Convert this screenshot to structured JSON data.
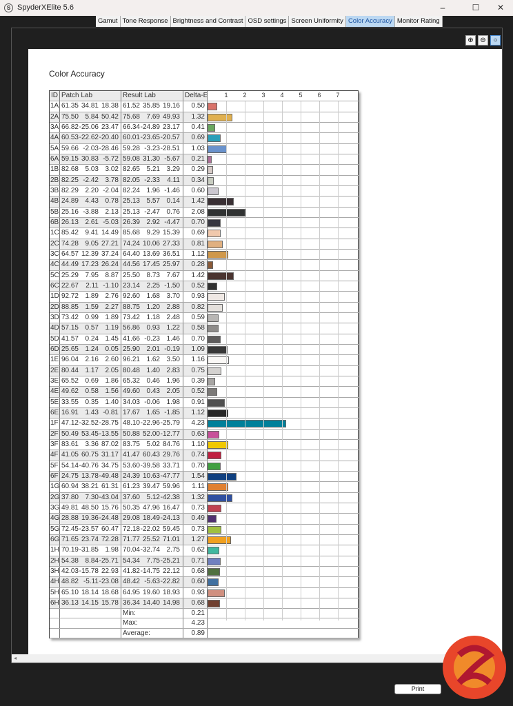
{
  "window": {
    "title": "SpyderXElite 5.6",
    "minimize": "–",
    "maximize": "☐",
    "close": "✕"
  },
  "tabs": [
    {
      "label": "Gamut"
    },
    {
      "label": "Tone Response"
    },
    {
      "label": "Brightness and Contrast"
    },
    {
      "label": "OSD settings"
    },
    {
      "label": "Screen Uniformity"
    },
    {
      "label": "Color Accuracy",
      "active": true
    },
    {
      "label": "Monitor Rating"
    }
  ],
  "zoom_tools": [
    {
      "icon": "zoom-in-icon",
      "glyph": "⊕"
    },
    {
      "icon": "zoom-out-icon",
      "glyph": "⊖"
    },
    {
      "icon": "zoom-fit-icon",
      "glyph": "○",
      "active": true
    }
  ],
  "report": {
    "title": "Color Accuracy",
    "headers": {
      "id": "ID",
      "patch": "Patch Lab",
      "result": "Result Lab",
      "delta": "Delta-E"
    },
    "axis_ticks": [
      "1",
      "2",
      "3",
      "4",
      "5",
      "6",
      "7"
    ],
    "rows": [
      [
        "1A",
        [
          "61.35",
          "34.81",
          "18.38"
        ],
        [
          "61.52",
          "35.85",
          "19.16"
        ],
        "0.50",
        "#d9736a"
      ],
      [
        "2A",
        [
          "75.50",
          "5.84",
          "50.42"
        ],
        [
          "75.68",
          "7.69",
          "49.93"
        ],
        "1.32",
        "#e0b050"
      ],
      [
        "3A",
        [
          "66.82",
          "-25.06",
          "23.47"
        ],
        [
          "66.34",
          "-24.89",
          "23.17"
        ],
        "0.41",
        "#6aa860"
      ],
      [
        "4A",
        [
          "60.53",
          "-22.62",
          "-20.40"
        ],
        [
          "60.01",
          "-23.65",
          "-20.57"
        ],
        "0.69",
        "#2a9fb8"
      ],
      [
        "5A",
        [
          "59.66",
          "-2.03",
          "-28.46"
        ],
        [
          "59.28",
          "-3.23",
          "-28.51"
        ],
        "1.03",
        "#6a92cc"
      ],
      [
        "6A",
        [
          "59.15",
          "30.83",
          "-5.72"
        ],
        [
          "59.08",
          "31.30",
          "-5.67"
        ],
        "0.21",
        "#b0709a"
      ],
      [
        "1B",
        [
          "82.68",
          "5.03",
          "3.02"
        ],
        [
          "82.65",
          "5.21",
          "3.29"
        ],
        "0.29",
        "#d8ccc8"
      ],
      [
        "2B",
        [
          "82.25",
          "-2.42",
          "3.78"
        ],
        [
          "82.05",
          "-2.33",
          "4.11"
        ],
        "0.34",
        "#c8ccc0"
      ],
      [
        "3B",
        [
          "82.29",
          "2.20",
          "-2.04"
        ],
        [
          "82.24",
          "1.96",
          "-1.46"
        ],
        "0.60",
        "#ccc8d0"
      ],
      [
        "4B",
        [
          "24.89",
          "4.43",
          "0.78"
        ],
        [
          "25.13",
          "5.57",
          "0.14"
        ],
        "1.42",
        "#3a3034"
      ],
      [
        "5B",
        [
          "25.16",
          "-3.88",
          "2.13"
        ],
        [
          "25.13",
          "-2.47",
          "0.76"
        ],
        "2.08",
        "#303232"
      ],
      [
        "6B",
        [
          "26.13",
          "2.61",
          "-5.03"
        ],
        [
          "26.39",
          "2.92",
          "-4.47"
        ],
        "0.70",
        "#363640"
      ],
      [
        "1C",
        [
          "85.42",
          "9.41",
          "14.49"
        ],
        [
          "85.68",
          "9.29",
          "15.39"
        ],
        "0.69",
        "#f0c8ac"
      ],
      [
        "2C",
        [
          "74.28",
          "9.05",
          "27.21"
        ],
        [
          "74.24",
          "10.06",
          "27.33"
        ],
        "0.81",
        "#e0b080"
      ],
      [
        "3C",
        [
          "64.57",
          "12.39",
          "37.24"
        ],
        [
          "64.40",
          "13.69",
          "36.51"
        ],
        "1.12",
        "#d0984a"
      ],
      [
        "4C",
        [
          "44.49",
          "17.23",
          "26.24"
        ],
        [
          "44.56",
          "17.45",
          "25.97"
        ],
        "0.28",
        "#8a5a38"
      ],
      [
        "5C",
        [
          "25.29",
          "7.95",
          "8.87"
        ],
        [
          "25.50",
          "8.73",
          "7.67"
        ],
        "1.42",
        "#4a3430"
      ],
      [
        "6C",
        [
          "22.67",
          "2.11",
          "-1.10"
        ],
        [
          "23.14",
          "2.25",
          "-1.50"
        ],
        "0.52",
        "#303030"
      ],
      [
        "1D",
        [
          "92.72",
          "1.89",
          "2.76"
        ],
        [
          "92.60",
          "1.68",
          "3.70"
        ],
        "0.93",
        "#efe8e4"
      ],
      [
        "2D",
        [
          "88.85",
          "1.59",
          "2.27"
        ],
        [
          "88.75",
          "1.20",
          "2.88"
        ],
        "0.82",
        "#e4e0dc"
      ],
      [
        "3D",
        [
          "73.42",
          "0.99",
          "1.89"
        ],
        [
          "73.42",
          "1.18",
          "2.48"
        ],
        "0.59",
        "#b8b6b4"
      ],
      [
        "4D",
        [
          "57.15",
          "0.57",
          "1.19"
        ],
        [
          "56.86",
          "0.93",
          "1.22"
        ],
        "0.58",
        "#8e8c8a"
      ],
      [
        "5D",
        [
          "41.57",
          "0.24",
          "1.45"
        ],
        [
          "41.66",
          "-0.23",
          "1.46"
        ],
        "0.70",
        "#5e5c5c"
      ],
      [
        "6D",
        [
          "25.65",
          "1.24",
          "0.05"
        ],
        [
          "25.90",
          "2.01",
          "-0.19"
        ],
        "1.09",
        "#383838"
      ],
      [
        "1E",
        [
          "96.04",
          "2.16",
          "2.60"
        ],
        [
          "96.21",
          "1.62",
          "3.50"
        ],
        "1.16",
        "#faf8f6"
      ],
      [
        "2E",
        [
          "80.44",
          "1.17",
          "2.05"
        ],
        [
          "80.48",
          "1.40",
          "2.83"
        ],
        "0.75",
        "#d4d2d0"
      ],
      [
        "3E",
        [
          "65.52",
          "0.69",
          "1.86"
        ],
        [
          "65.32",
          "0.46",
          "1.96"
        ],
        "0.39",
        "#a8a6a4"
      ],
      [
        "4E",
        [
          "49.62",
          "0.58",
          "1.56"
        ],
        [
          "49.60",
          "0.43",
          "2.05"
        ],
        "0.52",
        "#7c7a78"
      ],
      [
        "5E",
        [
          "33.55",
          "0.35",
          "1.40"
        ],
        [
          "34.03",
          "-0.06",
          "1.98"
        ],
        "0.91",
        "#505050"
      ],
      [
        "6E",
        [
          "16.91",
          "1.43",
          "-0.81"
        ],
        [
          "17.67",
          "1.65",
          "-1.85"
        ],
        "1.12",
        "#282828"
      ],
      [
        "1F",
        [
          "47.12",
          "-32.52",
          "-28.75"
        ],
        [
          "48.10",
          "-22.96",
          "-25.79"
        ],
        "4.23",
        "#00809a"
      ],
      [
        "2F",
        [
          "50.49",
          "53.45",
          "-13.55"
        ],
        [
          "50.88",
          "52.00",
          "-12.77"
        ],
        "0.63",
        "#c8509a"
      ],
      [
        "3F",
        [
          "83.61",
          "3.36",
          "87.02"
        ],
        [
          "83.75",
          "5.02",
          "84.76"
        ],
        "1.10",
        "#f0c800"
      ],
      [
        "4F",
        [
          "41.05",
          "60.75",
          "31.17"
        ],
        [
          "41.47",
          "60.43",
          "29.76"
        ],
        "0.74",
        "#c02040"
      ],
      [
        "5F",
        [
          "54.14",
          "-40.76",
          "34.75"
        ],
        [
          "53.60",
          "-39.58",
          "33.71"
        ],
        "0.70",
        "#40a040"
      ],
      [
        "6F",
        [
          "24.75",
          "13.78",
          "-49.48"
        ],
        [
          "24.39",
          "10.63",
          "-47.77"
        ],
        "1.54",
        "#104080"
      ],
      [
        "1G",
        [
          "60.94",
          "38.21",
          "61.31"
        ],
        [
          "61.23",
          "39.47",
          "59.96"
        ],
        "1.11",
        "#e08030"
      ],
      [
        "2G",
        [
          "37.80",
          "7.30",
          "-43.04"
        ],
        [
          "37.60",
          "5.12",
          "-42.38"
        ],
        "1.32",
        "#3050a0"
      ],
      [
        "3G",
        [
          "49.81",
          "48.50",
          "15.76"
        ],
        [
          "50.35",
          "47.96",
          "16.47"
        ],
        "0.73",
        "#c04050"
      ],
      [
        "4G",
        [
          "28.88",
          "19.36",
          "-24.48"
        ],
        [
          "29.08",
          "18.49",
          "-24.13"
        ],
        "0.49",
        "#503070"
      ],
      [
        "5G",
        [
          "72.45",
          "-23.57",
          "60.47"
        ],
        [
          "72.18",
          "-22.02",
          "59.45"
        ],
        "0.73",
        "#a0c040"
      ],
      [
        "6G",
        [
          "71.65",
          "23.74",
          "72.28"
        ],
        [
          "71.77",
          "25.52",
          "71.01"
        ],
        "1.27",
        "#f0a020"
      ],
      [
        "1H",
        [
          "70.19",
          "-31.85",
          "1.98"
        ],
        [
          "70.04",
          "-32.74",
          "2.75"
        ],
        "0.62",
        "#40b8a0"
      ],
      [
        "2H",
        [
          "54.38",
          "8.84",
          "-25.71"
        ],
        [
          "54.34",
          "7.75",
          "-25.21"
        ],
        "0.71",
        "#7080c0"
      ],
      [
        "3H",
        [
          "42.03",
          "-15.78",
          "22.93"
        ],
        [
          "41.82",
          "-14.75",
          "22.12"
        ],
        "0.68",
        "#507040"
      ],
      [
        "4H",
        [
          "48.82",
          "-5.11",
          "-23.08"
        ],
        [
          "48.42",
          "-5.63",
          "-22.82"
        ],
        "0.60",
        "#4070a0"
      ],
      [
        "5H",
        [
          "65.10",
          "18.14",
          "18.68"
        ],
        [
          "64.95",
          "19.60",
          "18.93"
        ],
        "0.93",
        "#d09080"
      ],
      [
        "6H",
        [
          "36.13",
          "14.15",
          "15.78"
        ],
        [
          "36.34",
          "14.40",
          "14.98"
        ],
        "0.68",
        "#704030"
      ]
    ],
    "summary": [
      {
        "label": "Min:",
        "value": "0.21"
      },
      {
        "label": "Max:",
        "value": "4.23"
      },
      {
        "label": "Average:",
        "value": "0.89"
      }
    ]
  },
  "scroll_left_glyph": "◂",
  "print_label": "Print",
  "watermark": "KitGuru logo"
}
